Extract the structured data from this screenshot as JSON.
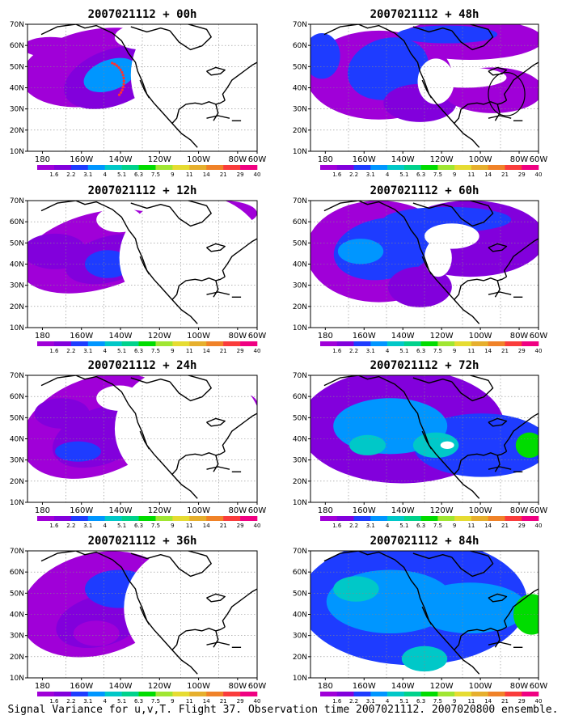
{
  "caption": "Signal Variance for u,v,T. Flight 37. Observation time 2007021112. 2007020800 ensemble.",
  "panels": [
    {
      "title": "2007021112 + 00h",
      "lead": 0
    },
    {
      "title": "2007021112 + 48h",
      "lead": 48
    },
    {
      "title": "2007021112 + 12h",
      "lead": 12
    },
    {
      "title": "2007021112 + 60h",
      "lead": 60
    },
    {
      "title": "2007021112 + 24h",
      "lead": 24
    },
    {
      "title": "2007021112 + 72h",
      "lead": 72
    },
    {
      "title": "2007021112 + 36h",
      "lead": 36
    },
    {
      "title": "2007021112 + 84h",
      "lead": 84
    }
  ],
  "axes": {
    "lon_ticks": [
      "180",
      "160W",
      "140W",
      "120W",
      "100W",
      "80W",
      "60W"
    ],
    "lat_ticks": [
      "10N",
      "20N",
      "30N",
      "40N",
      "50N",
      "60N",
      "70N"
    ]
  },
  "colorbar": {
    "labels": [
      "1.6",
      "2.2",
      "3.1",
      "4",
      "5.1",
      "6.3",
      "7.5",
      "9",
      "11",
      "14",
      "21",
      "29",
      "40"
    ],
    "colors": [
      "#a000d8",
      "#8200dc",
      "#1e3cff",
      "#0096ff",
      "#00c8c8",
      "#00d28c",
      "#00dc00",
      "#a0e632",
      "#e6dc32",
      "#e6af2d",
      "#f08228",
      "#fa3c3c",
      "#f00082"
    ]
  },
  "map": {
    "flight_track_color": "#ff3030",
    "land_line_color": "#000000"
  }
}
